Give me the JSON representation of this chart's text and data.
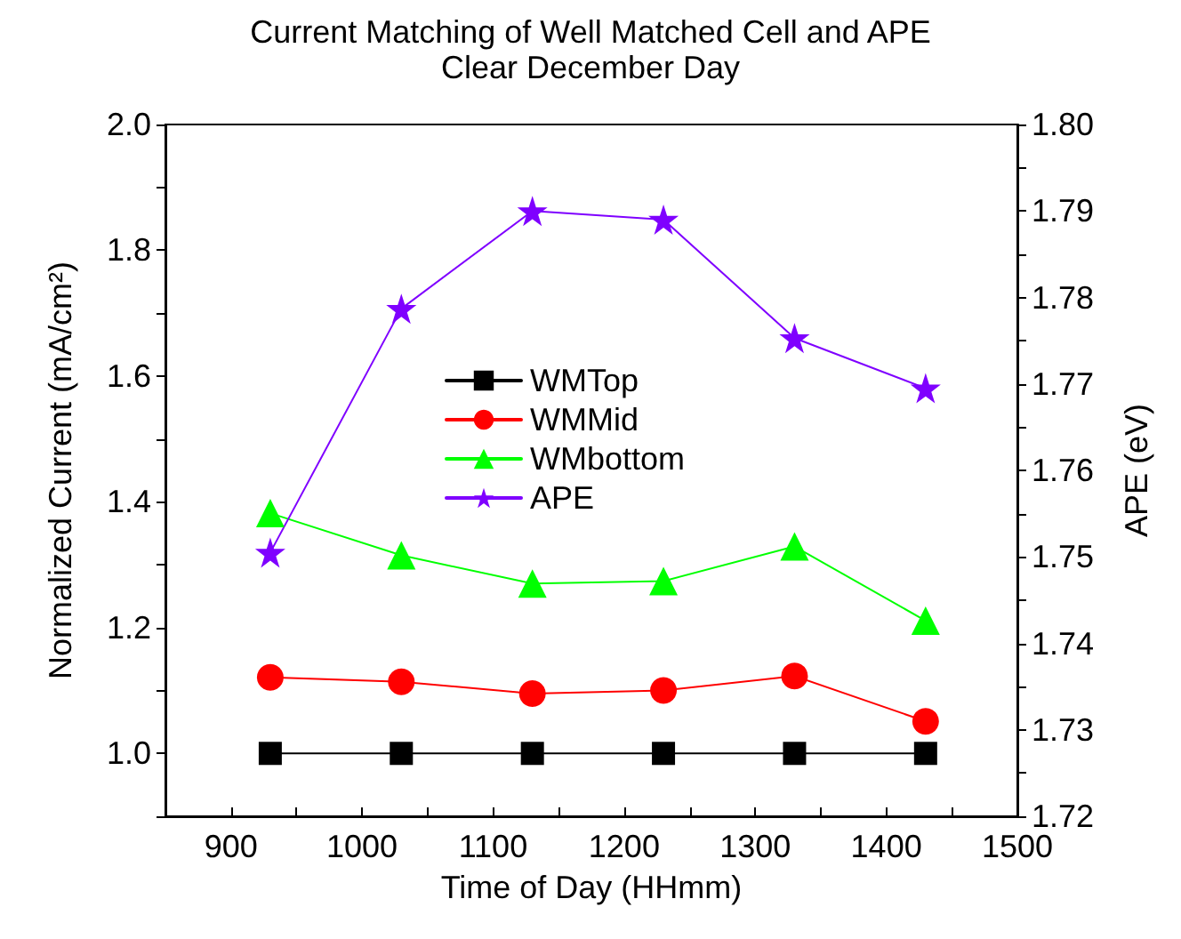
{
  "chart_data": {
    "type": "line",
    "title": "Current Matching of Well Matched Cell and APE",
    "subtitle": "Clear December Day",
    "xlabel": "Time of Day (HHmm)",
    "ylabel": "Normalized Current (mA/cm²)",
    "y2label": "APE (eV)",
    "x": [
      930,
      1030,
      1130,
      1230,
      1330,
      1430
    ],
    "xlim": [
      850,
      1500
    ],
    "xticks": [
      {
        "value": 850,
        "label": null
      },
      900,
      {
        "value": 950,
        "label": null
      },
      1000,
      {
        "value": 1050,
        "label": null
      },
      1100,
      {
        "value": 1150,
        "label": null
      },
      1200,
      {
        "value": 1250,
        "label": null
      },
      1300,
      {
        "value": 1350,
        "label": null
      },
      1400,
      {
        "value": 1450,
        "label": null
      },
      1500
    ],
    "ylim": [
      0.9,
      2.0
    ],
    "yticks": [
      {
        "value": 0.9,
        "label": null
      },
      {
        "value": 1.0,
        "label": "1.0"
      },
      {
        "value": 1.1,
        "label": null
      },
      1.2,
      {
        "value": 1.3,
        "label": null
      },
      1.4,
      {
        "value": 1.5,
        "label": null
      },
      1.6,
      {
        "value": 1.7,
        "label": null
      },
      1.8,
      {
        "value": 1.9,
        "label": null
      },
      {
        "value": 2.0,
        "label": "2.0"
      }
    ],
    "y2lim": [
      1.72,
      1.8
    ],
    "y2ticks": [
      1.72,
      {
        "value": 1.725,
        "label": null
      },
      1.73,
      {
        "value": 1.735,
        "label": null
      },
      1.74,
      {
        "value": 1.745,
        "label": null
      },
      1.75,
      {
        "value": 1.755,
        "label": null
      },
      1.76,
      {
        "value": 1.765,
        "label": null
      },
      1.77,
      {
        "value": 1.775,
        "label": null
      },
      1.78,
      {
        "value": 1.785,
        "label": null
      },
      1.79,
      {
        "value": 1.795,
        "label": null
      },
      {
        "value": 1.8,
        "label": "1.80"
      }
    ],
    "grid": false,
    "legend": "center",
    "series": [
      {
        "name": "WMTop",
        "color": "#000000",
        "marker": "square",
        "values": [
          1.0,
          1.0,
          1.0,
          1.0,
          1.0,
          1.0
        ]
      },
      {
        "name": "WMMid",
        "color": "#ff0000",
        "marker": "circle",
        "values": [
          1.121,
          1.114,
          1.095,
          1.1,
          1.123,
          1.051
        ]
      },
      {
        "name": "WMbottom",
        "color": "#00ff00",
        "marker": "triangle",
        "values": [
          1.382,
          1.315,
          1.27,
          1.274,
          1.329,
          1.211
        ]
      },
      {
        "name": "APE",
        "color": "#7f00ff",
        "marker": "star",
        "axis": "y2",
        "values": [
          1.7505,
          1.7787,
          1.79,
          1.789,
          1.7753,
          1.7695
        ]
      }
    ]
  }
}
